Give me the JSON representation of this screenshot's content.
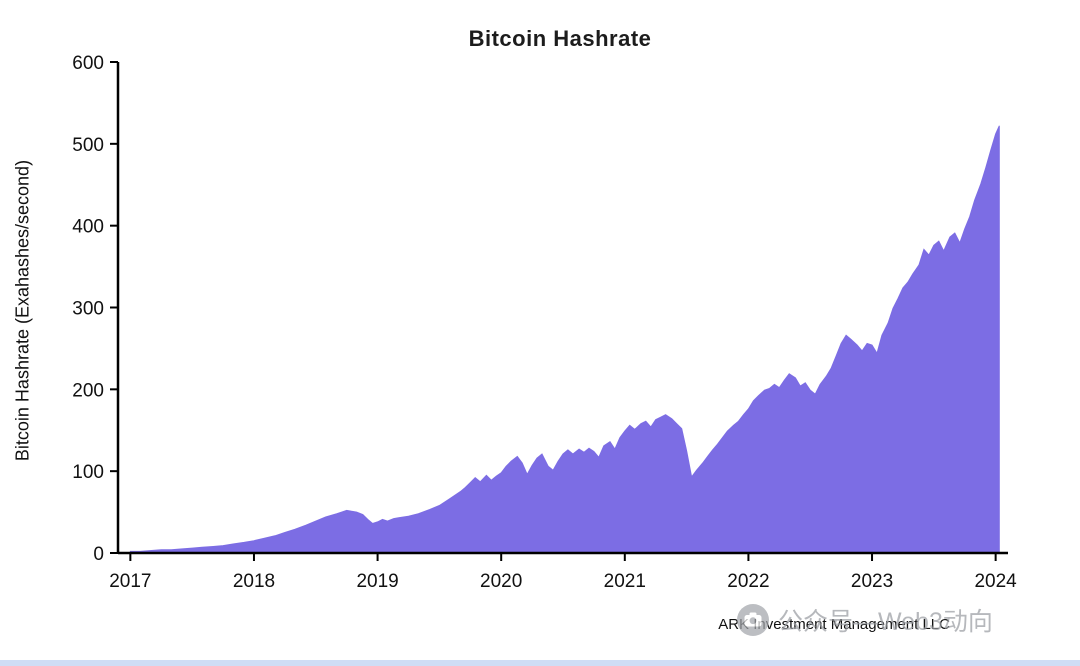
{
  "page": {
    "background": "#ffffff"
  },
  "chart_data": {
    "type": "area",
    "title": "Bitcoin Hashrate",
    "xlabel": "",
    "ylabel": "Bitcoin Hashrate (Exahashes/second)",
    "xlim": [
      2016.9,
      2024.1
    ],
    "ylim": [
      0,
      600
    ],
    "xticks": [
      2017,
      2018,
      2019,
      2020,
      2021,
      2022,
      2023,
      2024
    ],
    "yticks": [
      0,
      100,
      200,
      300,
      400,
      500,
      600
    ],
    "grid": false,
    "legend": "none",
    "fill_color": "#7c6de4",
    "axis_color": "#000000",
    "tick_label_color": "#111111",
    "series": [
      {
        "name": "Bitcoin Hashrate (EH/s)",
        "points": [
          [
            2017.0,
            2
          ],
          [
            2017.08,
            2
          ],
          [
            2017.17,
            3
          ],
          [
            2017.25,
            4
          ],
          [
            2017.33,
            4
          ],
          [
            2017.42,
            5
          ],
          [
            2017.5,
            6
          ],
          [
            2017.58,
            7
          ],
          [
            2017.67,
            8
          ],
          [
            2017.75,
            9
          ],
          [
            2017.83,
            11
          ],
          [
            2017.92,
            13
          ],
          [
            2018.0,
            15
          ],
          [
            2018.08,
            18
          ],
          [
            2018.17,
            21
          ],
          [
            2018.25,
            25
          ],
          [
            2018.33,
            29
          ],
          [
            2018.42,
            34
          ],
          [
            2018.5,
            39
          ],
          [
            2018.58,
            44
          ],
          [
            2018.67,
            48
          ],
          [
            2018.71,
            50
          ],
          [
            2018.75,
            52
          ],
          [
            2018.79,
            51
          ],
          [
            2018.83,
            50
          ],
          [
            2018.88,
            47
          ],
          [
            2018.92,
            41
          ],
          [
            2018.96,
            36
          ],
          [
            2019.0,
            38
          ],
          [
            2019.04,
            41
          ],
          [
            2019.08,
            39
          ],
          [
            2019.13,
            42
          ],
          [
            2019.17,
            43
          ],
          [
            2019.25,
            45
          ],
          [
            2019.33,
            48
          ],
          [
            2019.42,
            53
          ],
          [
            2019.5,
            58
          ],
          [
            2019.58,
            66
          ],
          [
            2019.67,
            75
          ],
          [
            2019.71,
            80
          ],
          [
            2019.75,
            86
          ],
          [
            2019.79,
            92
          ],
          [
            2019.83,
            87
          ],
          [
            2019.88,
            95
          ],
          [
            2019.92,
            89
          ],
          [
            2019.96,
            94
          ],
          [
            2020.0,
            98
          ],
          [
            2020.04,
            106
          ],
          [
            2020.08,
            112
          ],
          [
            2020.13,
            118
          ],
          [
            2020.17,
            110
          ],
          [
            2020.21,
            96
          ],
          [
            2020.25,
            107
          ],
          [
            2020.29,
            116
          ],
          [
            2020.33,
            121
          ],
          [
            2020.38,
            106
          ],
          [
            2020.42,
            101
          ],
          [
            2020.46,
            112
          ],
          [
            2020.5,
            121
          ],
          [
            2020.54,
            126
          ],
          [
            2020.58,
            121
          ],
          [
            2020.63,
            127
          ],
          [
            2020.67,
            123
          ],
          [
            2020.71,
            128
          ],
          [
            2020.75,
            124
          ],
          [
            2020.79,
            117
          ],
          [
            2020.83,
            131
          ],
          [
            2020.88,
            136
          ],
          [
            2020.92,
            127
          ],
          [
            2020.96,
            141
          ],
          [
            2021.0,
            149
          ],
          [
            2021.04,
            156
          ],
          [
            2021.08,
            151
          ],
          [
            2021.13,
            158
          ],
          [
            2021.17,
            161
          ],
          [
            2021.21,
            154
          ],
          [
            2021.25,
            163
          ],
          [
            2021.29,
            166
          ],
          [
            2021.33,
            169
          ],
          [
            2021.38,
            164
          ],
          [
            2021.42,
            158
          ],
          [
            2021.46,
            152
          ],
          [
            2021.5,
            125
          ],
          [
            2021.54,
            93
          ],
          [
            2021.58,
            101
          ],
          [
            2021.63,
            110
          ],
          [
            2021.67,
            118
          ],
          [
            2021.71,
            126
          ],
          [
            2021.75,
            133
          ],
          [
            2021.79,
            141
          ],
          [
            2021.83,
            149
          ],
          [
            2021.88,
            156
          ],
          [
            2021.92,
            161
          ],
          [
            2021.96,
            169
          ],
          [
            2022.0,
            176
          ],
          [
            2022.04,
            186
          ],
          [
            2022.08,
            192
          ],
          [
            2022.13,
            199
          ],
          [
            2022.17,
            201
          ],
          [
            2022.21,
            206
          ],
          [
            2022.25,
            202
          ],
          [
            2022.29,
            211
          ],
          [
            2022.33,
            219
          ],
          [
            2022.38,
            214
          ],
          [
            2022.42,
            204
          ],
          [
            2022.46,
            208
          ],
          [
            2022.5,
            199
          ],
          [
            2022.54,
            194
          ],
          [
            2022.58,
            206
          ],
          [
            2022.63,
            216
          ],
          [
            2022.67,
            226
          ],
          [
            2022.71,
            241
          ],
          [
            2022.75,
            256
          ],
          [
            2022.79,
            266
          ],
          [
            2022.83,
            261
          ],
          [
            2022.88,
            254
          ],
          [
            2022.92,
            247
          ],
          [
            2022.96,
            256
          ],
          [
            2023.0,
            254
          ],
          [
            2023.04,
            244
          ],
          [
            2023.08,
            266
          ],
          [
            2023.13,
            281
          ],
          [
            2023.17,
            299
          ],
          [
            2023.21,
            311
          ],
          [
            2023.25,
            324
          ],
          [
            2023.29,
            331
          ],
          [
            2023.33,
            341
          ],
          [
            2023.38,
            352
          ],
          [
            2023.42,
            371
          ],
          [
            2023.46,
            364
          ],
          [
            2023.5,
            376
          ],
          [
            2023.54,
            381
          ],
          [
            2023.58,
            369
          ],
          [
            2023.63,
            386
          ],
          [
            2023.67,
            391
          ],
          [
            2023.71,
            379
          ],
          [
            2023.75,
            396
          ],
          [
            2023.79,
            411
          ],
          [
            2023.83,
            431
          ],
          [
            2023.88,
            451
          ],
          [
            2023.92,
            471
          ],
          [
            2023.96,
            492
          ],
          [
            2024.0,
            512
          ],
          [
            2024.03,
            522
          ]
        ]
      }
    ]
  },
  "footer": {
    "source": "ARK Investment Management LLC",
    "watermark_text": "公众号—Web3动向",
    "watermark_icon": "camera-icon",
    "watermark_color": "#9b9ea3"
  }
}
